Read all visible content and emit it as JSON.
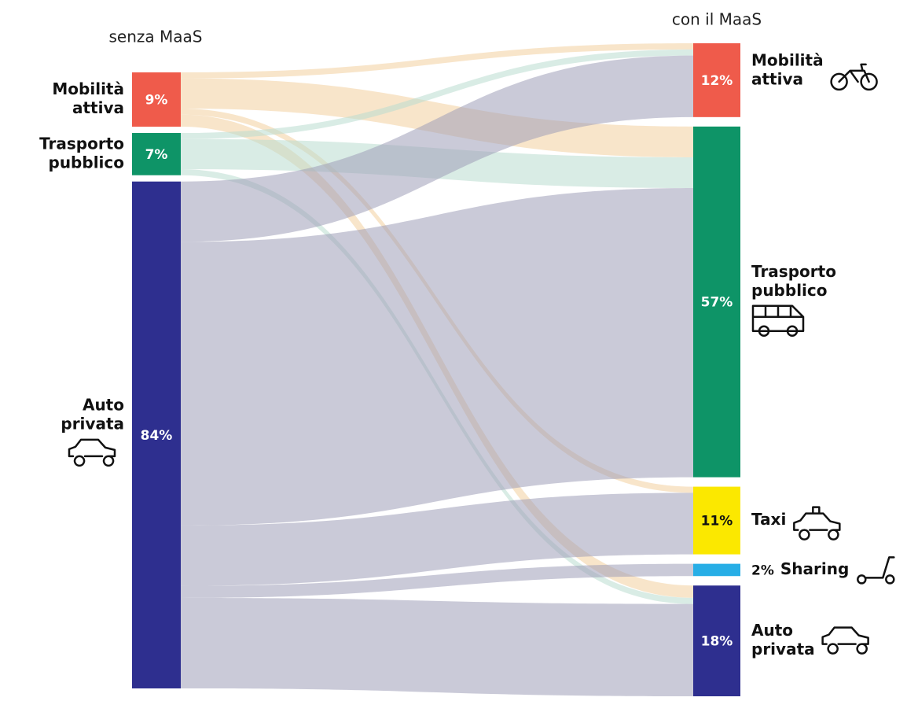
{
  "chart_data": {
    "type": "sankey",
    "left_title": "senza MaaS",
    "right_title": "con il MaaS",
    "left_nodes": [
      {
        "label": [
          "Mobilità",
          "attiva"
        ],
        "value": 9,
        "value_label": "9%",
        "color": "#ef5b4b",
        "flow_color": "#f3cf9f"
      },
      {
        "label": [
          "Trasporto",
          "pubblico"
        ],
        "value": 7,
        "value_label": "7%",
        "color": "#0e9467",
        "flow_color": "#b9ddd0"
      },
      {
        "label": [
          "Auto",
          "privata"
        ],
        "value": 84,
        "value_label": "84%",
        "color": "#2e2f8f",
        "flow_color": "#9e9fb8"
      }
    ],
    "right_nodes": [
      {
        "label": [
          "Mobilità",
          "attiva"
        ],
        "value": 12,
        "value_label": "12%",
        "color": "#ef5b4b"
      },
      {
        "label": [
          "Trasporto",
          "pubblico"
        ],
        "value": 57,
        "value_label": "57%",
        "color": "#0e9467"
      },
      {
        "label": [
          "Taxi"
        ],
        "value": 11,
        "value_label": "11%",
        "color": "#fbe800"
      },
      {
        "label": [
          "Sharing"
        ],
        "value": 2,
        "value_label": "2%",
        "color": "#27aee6"
      },
      {
        "label": [
          "Auto",
          "privata"
        ],
        "value": 18,
        "value_label": "18%",
        "color": "#2e2f8f"
      }
    ],
    "flows": [
      {
        "source": 0,
        "target": 0,
        "value": 1
      },
      {
        "source": 0,
        "target": 1,
        "value": 5
      },
      {
        "source": 0,
        "target": 2,
        "value": 1
      },
      {
        "source": 0,
        "target": 4,
        "value": 2
      },
      {
        "source": 1,
        "target": 0,
        "value": 1
      },
      {
        "source": 1,
        "target": 1,
        "value": 5
      },
      {
        "source": 1,
        "target": 4,
        "value": 1
      },
      {
        "source": 2,
        "target": 0,
        "value": 10
      },
      {
        "source": 2,
        "target": 1,
        "value": 47
      },
      {
        "source": 2,
        "target": 2,
        "value": 10
      },
      {
        "source": 2,
        "target": 3,
        "value": 2
      },
      {
        "source": 2,
        "target": 4,
        "value": 15
      }
    ]
  }
}
